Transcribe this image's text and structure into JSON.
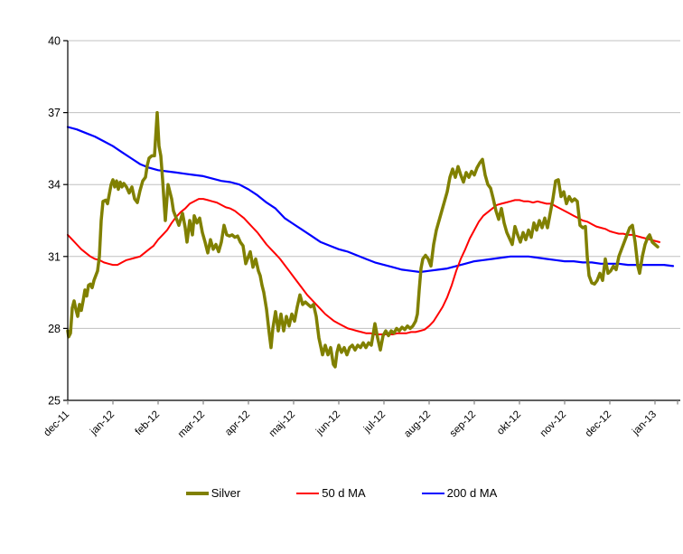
{
  "chart_data": {
    "type": "line",
    "title": "",
    "xlabel": "",
    "ylabel": "",
    "x_unit": "months since dec-11",
    "x_tick_labels": [
      "dec-11",
      "jan-12",
      "feb-12",
      "mar-12",
      "apr-12",
      "maj-12",
      "jun-12",
      "jul-12",
      "aug-12",
      "sep-12",
      "okt-12",
      "nov-12",
      "dec-12",
      "jan-13"
    ],
    "y_ticks": [
      25,
      28,
      31,
      34,
      37,
      40
    ],
    "ylim": [
      25,
      40
    ],
    "xlim": [
      0,
      13.56
    ],
    "grid": "horizontal",
    "legend_position": "bottom",
    "series": [
      {
        "name": "Silver",
        "color": "#808000",
        "width": 3.5,
        "x": [
          0.0,
          0.02,
          0.06,
          0.1,
          0.14,
          0.18,
          0.22,
          0.26,
          0.3,
          0.34,
          0.38,
          0.42,
          0.46,
          0.5,
          0.54,
          0.58,
          0.62,
          0.66,
          0.7,
          0.74,
          0.78,
          0.84,
          0.88,
          0.92,
          0.96,
          1.0,
          1.04,
          1.08,
          1.12,
          1.16,
          1.2,
          1.24,
          1.3,
          1.36,
          1.42,
          1.48,
          1.54,
          1.6,
          1.66,
          1.72,
          1.76,
          1.8,
          1.86,
          1.92,
          1.98,
          2.02,
          2.06,
          2.1,
          2.16,
          2.22,
          2.26,
          2.3,
          2.34,
          2.4,
          2.46,
          2.54,
          2.6,
          2.64,
          2.7,
          2.76,
          2.8,
          2.86,
          2.92,
          2.98,
          3.04,
          3.1,
          3.16,
          3.22,
          3.28,
          3.34,
          3.4,
          3.46,
          3.52,
          3.58,
          3.64,
          3.7,
          3.76,
          3.82,
          3.88,
          3.94,
          4.0,
          4.04,
          4.1,
          4.16,
          4.22,
          4.26,
          4.3,
          4.34,
          4.4,
          4.46,
          4.5,
          4.54,
          4.6,
          4.66,
          4.72,
          4.78,
          4.84,
          4.9,
          4.96,
          5.02,
          5.08,
          5.14,
          5.2,
          5.26,
          5.32,
          5.38,
          5.44,
          5.5,
          5.56,
          5.64,
          5.7,
          5.76,
          5.82,
          5.88,
          5.92,
          5.96,
          6.0,
          6.06,
          6.12,
          6.18,
          6.24,
          6.3,
          6.36,
          6.42,
          6.48,
          6.54,
          6.6,
          6.66,
          6.72,
          6.8,
          6.86,
          6.92,
          6.98,
          7.04,
          7.1,
          7.16,
          7.22,
          7.28,
          7.34,
          7.4,
          7.46,
          7.52,
          7.58,
          7.64,
          7.7,
          7.74,
          7.78,
          7.82,
          7.86,
          7.92,
          7.98,
          8.04,
          8.1,
          8.16,
          8.22,
          8.28,
          8.34,
          8.4,
          8.46,
          8.52,
          8.58,
          8.64,
          8.7,
          8.76,
          8.82,
          8.88,
          8.94,
          9.0,
          9.06,
          9.12,
          9.18,
          9.24,
          9.3,
          9.36,
          9.42,
          9.48,
          9.54,
          9.6,
          9.66,
          9.72,
          9.78,
          9.84,
          9.9,
          9.96,
          10.02,
          10.08,
          10.14,
          10.2,
          10.26,
          10.32,
          10.38,
          10.44,
          10.5,
          10.56,
          10.62,
          10.68,
          10.74,
          10.8,
          10.86,
          10.92,
          10.98,
          11.04,
          11.1,
          11.16,
          11.22,
          11.28,
          11.34,
          11.4,
          11.46,
          11.5,
          11.54,
          11.6,
          11.66,
          11.72,
          11.78,
          11.84,
          11.9,
          11.96,
          12.02,
          12.08,
          12.14,
          12.2,
          12.26,
          12.32,
          12.38,
          12.44,
          12.5,
          12.56,
          12.62,
          12.66,
          12.72,
          12.78,
          12.84,
          12.88,
          12.94,
          13.0,
          13.06
        ],
        "values": [
          27.9,
          27.65,
          27.8,
          28.85,
          29.15,
          28.8,
          28.5,
          29.0,
          28.75,
          29.15,
          29.6,
          29.35,
          29.8,
          29.85,
          29.7,
          30.0,
          30.2,
          30.4,
          31.0,
          32.5,
          33.3,
          33.35,
          33.2,
          33.6,
          34.0,
          34.2,
          33.9,
          34.15,
          33.8,
          34.1,
          33.9,
          34.05,
          33.9,
          33.65,
          33.9,
          33.4,
          33.25,
          33.75,
          34.15,
          34.3,
          34.8,
          35.1,
          35.2,
          35.2,
          37.0,
          35.6,
          35.2,
          34.2,
          32.5,
          34.0,
          33.7,
          33.4,
          32.9,
          32.6,
          32.3,
          32.8,
          32.2,
          31.6,
          32.5,
          31.9,
          32.7,
          32.4,
          32.6,
          32.0,
          31.6,
          31.15,
          31.7,
          31.3,
          31.5,
          31.2,
          31.6,
          32.3,
          31.9,
          31.85,
          31.9,
          31.8,
          31.85,
          31.6,
          31.45,
          30.7,
          31.0,
          31.2,
          30.55,
          30.9,
          30.4,
          30.2,
          29.8,
          29.5,
          28.8,
          27.8,
          27.2,
          28.0,
          28.7,
          27.9,
          28.6,
          27.9,
          28.5,
          28.1,
          28.6,
          28.3,
          28.9,
          29.4,
          29.0,
          29.1,
          29.0,
          28.9,
          29.0,
          28.5,
          27.6,
          26.9,
          27.3,
          26.9,
          27.2,
          26.5,
          26.4,
          27.0,
          27.3,
          27.0,
          27.2,
          26.9,
          27.2,
          27.3,
          27.1,
          27.3,
          27.2,
          27.4,
          27.2,
          27.4,
          27.3,
          28.2,
          27.6,
          27.1,
          27.7,
          27.9,
          27.7,
          27.9,
          27.8,
          28.0,
          27.9,
          28.05,
          27.95,
          28.1,
          28.0,
          28.1,
          28.3,
          28.6,
          29.6,
          30.5,
          30.9,
          31.05,
          30.9,
          30.6,
          31.5,
          32.1,
          32.5,
          32.9,
          33.3,
          33.7,
          34.3,
          34.65,
          34.3,
          34.75,
          34.4,
          34.1,
          34.5,
          34.3,
          34.55,
          34.4,
          34.7,
          34.9,
          35.05,
          34.4,
          34.0,
          33.85,
          33.4,
          32.9,
          32.55,
          33.0,
          32.4,
          32.0,
          31.75,
          31.5,
          32.25,
          31.9,
          31.6,
          32.0,
          31.7,
          32.1,
          31.8,
          32.4,
          32.1,
          32.5,
          32.2,
          32.6,
          32.2,
          32.8,
          33.4,
          34.15,
          34.2,
          33.5,
          33.7,
          33.2,
          33.5,
          33.3,
          33.4,
          33.3,
          32.3,
          32.2,
          32.25,
          31.0,
          30.2,
          29.9,
          29.85,
          30.0,
          30.3,
          30.0,
          30.9,
          30.3,
          30.4,
          30.6,
          30.45,
          31.0,
          31.3,
          31.6,
          31.9,
          32.2,
          32.3,
          31.6,
          30.6,
          30.3,
          31.0,
          31.5,
          31.8,
          31.9,
          31.6,
          31.5,
          31.4
        ]
      },
      {
        "name": "50 d MA",
        "color": "#FF0000",
        "width": 2,
        "x_start": 0,
        "x_step": 0.1,
        "values": [
          31.9,
          31.7,
          31.5,
          31.3,
          31.15,
          31.0,
          30.9,
          30.85,
          30.75,
          30.7,
          30.65,
          30.65,
          30.75,
          30.85,
          30.9,
          30.95,
          31.0,
          31.15,
          31.3,
          31.45,
          31.7,
          31.9,
          32.1,
          32.4,
          32.65,
          32.85,
          33.0,
          33.2,
          33.3,
          33.4,
          33.4,
          33.35,
          33.3,
          33.25,
          33.15,
          33.05,
          33.0,
          32.9,
          32.75,
          32.6,
          32.4,
          32.2,
          32.0,
          31.75,
          31.5,
          31.3,
          31.1,
          30.9,
          30.65,
          30.4,
          30.15,
          29.9,
          29.65,
          29.4,
          29.2,
          29.0,
          28.8,
          28.6,
          28.45,
          28.3,
          28.2,
          28.1,
          28.0,
          27.95,
          27.9,
          27.85,
          27.8,
          27.8,
          27.75,
          27.75,
          27.75,
          27.75,
          27.75,
          27.8,
          27.8,
          27.8,
          27.85,
          27.85,
          27.9,
          27.95,
          28.1,
          28.3,
          28.6,
          28.9,
          29.3,
          29.8,
          30.4,
          30.9,
          31.3,
          31.75,
          32.1,
          32.45,
          32.7,
          32.85,
          33.0,
          33.15,
          33.2,
          33.25,
          33.3,
          33.35,
          33.35,
          33.3,
          33.3,
          33.25,
          33.3,
          33.25,
          33.2,
          33.2,
          33.1,
          33.0,
          32.9,
          32.8,
          32.7,
          32.6,
          32.5,
          32.45,
          32.35,
          32.25,
          32.2,
          32.15,
          32.05,
          32.0,
          31.95,
          31.95,
          31.9,
          31.9,
          31.85,
          31.8,
          31.75,
          31.7,
          31.65,
          31.6
        ]
      },
      {
        "name": "200 d MA",
        "color": "#0000FF",
        "width": 2.2,
        "x_start": 0,
        "x_step": 0.2,
        "values": [
          36.4,
          36.3,
          36.15,
          36.0,
          35.8,
          35.6,
          35.35,
          35.1,
          34.85,
          34.7,
          34.6,
          34.55,
          34.5,
          34.45,
          34.4,
          34.35,
          34.25,
          34.15,
          34.1,
          34.0,
          33.8,
          33.55,
          33.25,
          33.0,
          32.6,
          32.35,
          32.1,
          31.85,
          31.6,
          31.45,
          31.3,
          31.2,
          31.05,
          30.9,
          30.75,
          30.65,
          30.55,
          30.45,
          30.4,
          30.35,
          30.4,
          30.45,
          30.5,
          30.6,
          30.7,
          30.8,
          30.85,
          30.9,
          30.95,
          31.0,
          31.0,
          31.0,
          30.95,
          30.9,
          30.85,
          30.8,
          30.8,
          30.75,
          30.75,
          30.7,
          30.7,
          30.7,
          30.65,
          30.65,
          30.65,
          30.65,
          30.65,
          30.6
        ]
      }
    ]
  },
  "legend": {
    "items": [
      {
        "label": "Silver",
        "color": "#808000",
        "thickness": 4
      },
      {
        "label": "50 d MA",
        "color": "#FF0000",
        "thickness": 2
      },
      {
        "label": "200 d MA",
        "color": "#0000FF",
        "thickness": 2
      }
    ]
  },
  "colors": {
    "gridline": "#C0C0C0",
    "axis": "#000000",
    "x_tick": "#808080",
    "y_tick": "#000000",
    "text": "#000000",
    "background": "#FFFFFF"
  }
}
